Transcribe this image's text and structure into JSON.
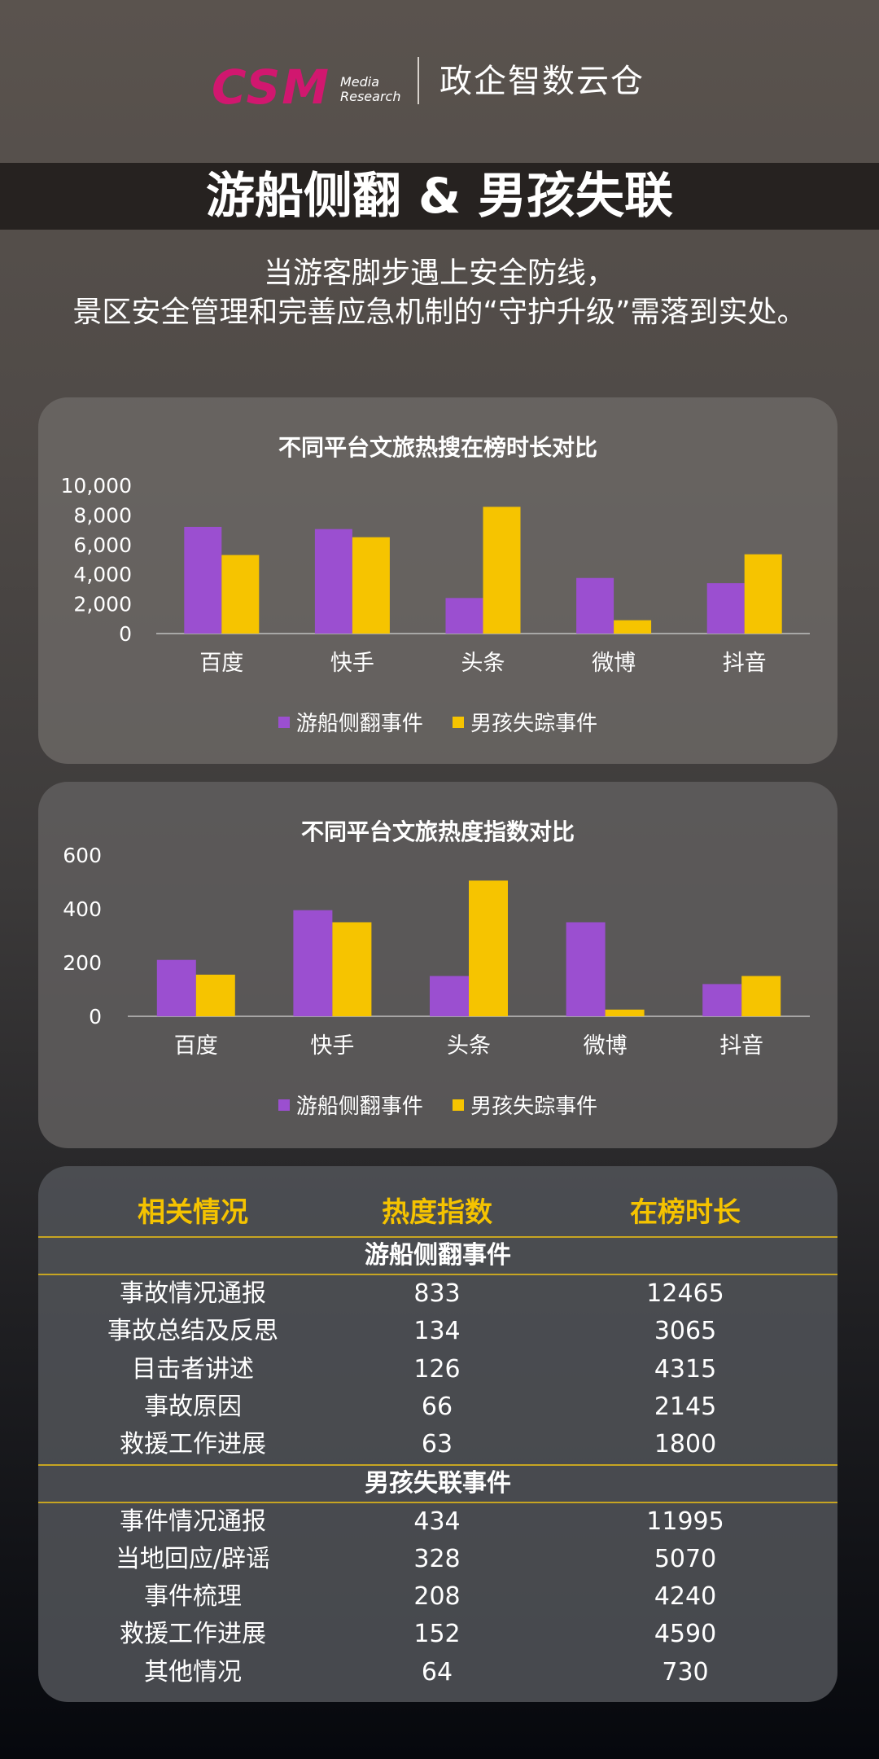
{
  "header": {
    "logo_main": "CSM",
    "logo_sub": "Media\nResearch",
    "brand": "政企智数云仓"
  },
  "title": "游船侧翻 & 男孩失联",
  "subtitle": {
    "line1": "当游客脚步遇上安全防线，",
    "line2": "景区安全管理和完善应急机制的“守护升级”需落到实处。"
  },
  "colors": {
    "series1": "#9b4fd0",
    "series2": "#f6c400",
    "accent": "#f5c300"
  },
  "chart_data": [
    {
      "type": "bar",
      "title": "不同平台文旅热搜在榜时长对比",
      "categories": [
        "百度",
        "快手",
        "头条",
        "微博",
        "抖音"
      ],
      "ylim": [
        0,
        10000
      ],
      "yticks": [
        "0",
        "2,000",
        "4,000",
        "6,000",
        "8,000",
        "10,000"
      ],
      "grid": false,
      "legend": "bottom",
      "series": [
        {
          "name": "游船侧翻事件",
          "values": [
            7200,
            7050,
            2400,
            3750,
            3400
          ]
        },
        {
          "name": "男孩失踪事件",
          "values": [
            5300,
            6500,
            8550,
            900,
            5350
          ]
        }
      ]
    },
    {
      "type": "bar",
      "title": "不同平台文旅热度指数对比",
      "categories": [
        "百度",
        "快手",
        "头条",
        "微博",
        "抖音"
      ],
      "ylim": [
        0,
        600
      ],
      "yticks": [
        "0",
        "200",
        "400",
        "600"
      ],
      "grid": false,
      "legend": "bottom",
      "series": [
        {
          "name": "游船侧翻事件",
          "values": [
            210,
            395,
            150,
            350,
            120
          ]
        },
        {
          "name": "男孩失踪事件",
          "values": [
            155,
            350,
            505,
            25,
            150
          ]
        }
      ]
    }
  ],
  "table": {
    "headers": [
      "相关情况",
      "热度指数",
      "在榜时长"
    ],
    "sections": [
      {
        "title": "游船侧翻事件",
        "rows": [
          [
            "事故情况通报",
            "833",
            "12465"
          ],
          [
            "事故总结及反思",
            "134",
            "3065"
          ],
          [
            "目击者讲述",
            "126",
            "4315"
          ],
          [
            "事故原因",
            "66",
            "2145"
          ],
          [
            "救援工作进展",
            "63",
            "1800"
          ]
        ]
      },
      {
        "title": "男孩失联事件",
        "rows": [
          [
            "事件情况通报",
            "434",
            "11995"
          ],
          [
            "当地回应/辟谣",
            "328",
            "5070"
          ],
          [
            "事件梳理",
            "208",
            "4240"
          ],
          [
            "救援工作进展",
            "152",
            "4590"
          ],
          [
            "其他情况",
            "64",
            "730"
          ]
        ]
      }
    ]
  }
}
